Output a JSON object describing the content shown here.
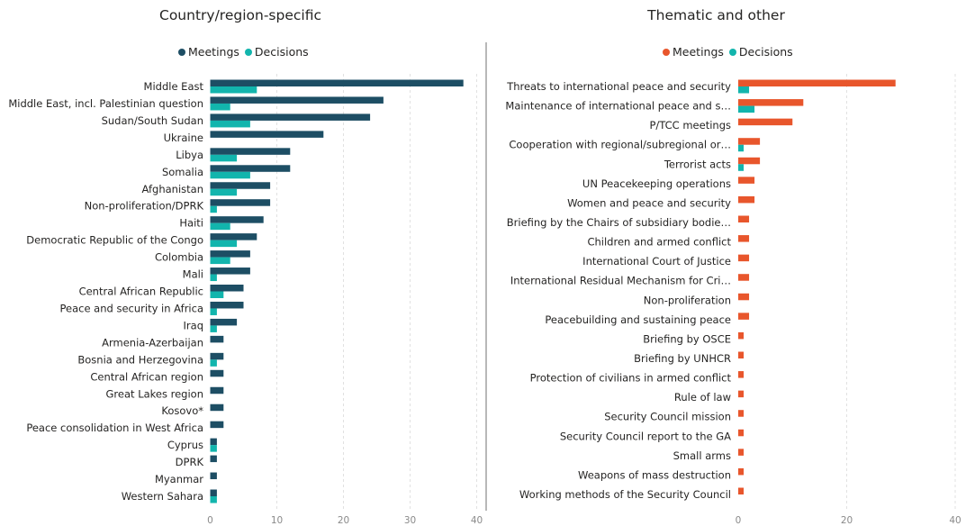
{
  "colors": {
    "left_meetings": "#1d4e64",
    "left_decisions": "#12b5ad",
    "right_meetings": "#e8562c",
    "right_decisions": "#12b5ad",
    "gridline": "#e1e1e1",
    "divider": "#b8b8b8"
  },
  "chart_data": [
    {
      "type": "bar",
      "orientation": "horizontal",
      "title": "Country/region-specific",
      "legend_position": "top",
      "grid": true,
      "xlim": [
        0,
        40
      ],
      "x_ticks": [
        0,
        10,
        20,
        30,
        40
      ],
      "categories": [
        "Middle East",
        "Middle East, incl. Palestinian question",
        "Sudan/South Sudan",
        "Ukraine",
        "Libya",
        "Somalia",
        "Afghanistan",
        "Non-proliferation/DPRK",
        "Haiti",
        "Democratic Republic of the Congo",
        "Colombia",
        "Mali",
        "Central African Republic",
        "Peace and security in Africa",
        "Iraq",
        "Armenia-Azerbaijan",
        "Bosnia and Herzegovina",
        "Central African region",
        "Great Lakes region",
        "Kosovo*",
        "Peace consolidation in West Africa",
        "Cyprus",
        "DPRK",
        "Myanmar",
        "Western Sahara"
      ],
      "series": [
        {
          "name": "Meetings",
          "values": [
            38,
            26,
            24,
            17,
            12,
            12,
            9,
            9,
            8,
            7,
            6,
            6,
            5,
            5,
            4,
            2,
            2,
            2,
            2,
            2,
            2,
            1,
            1,
            1,
            1
          ]
        },
        {
          "name": "Decisions",
          "values": [
            7,
            3,
            6,
            0,
            4,
            6,
            4,
            1,
            3,
            4,
            3,
            1,
            2,
            1,
            1,
            0,
            1,
            0,
            0,
            0,
            0,
            1,
            0,
            0,
            1
          ]
        }
      ]
    },
    {
      "type": "bar",
      "orientation": "horizontal",
      "title": "Thematic and other",
      "legend_position": "top",
      "grid": true,
      "xlim": [
        0,
        40
      ],
      "x_ticks": [
        0,
        20,
        40
      ],
      "categories": [
        "Threats to international peace and security",
        "Maintenance of international peace and s…",
        "P/TCC meetings",
        "Cooperation with regional/subregional or…",
        "Terrorist acts",
        "UN Peacekeeping operations",
        "Women and peace and security",
        "Briefing by the Chairs of subsidiary bodie…",
        "Children and armed conflict",
        "International Court of Justice",
        "International Residual Mechanism for Cri…",
        "Non-proliferation",
        "Peacebuilding and sustaining peace",
        "Briefing by OSCE",
        "Briefing by UNHCR",
        "Protection of civilians in armed conflict",
        "Rule of law",
        "Security Council mission",
        "Security Council report to the GA",
        "Small arms",
        "Weapons of mass destruction",
        "Working methods of the Security Council"
      ],
      "series": [
        {
          "name": "Meetings",
          "values": [
            29,
            12,
            10,
            4,
            4,
            3,
            3,
            2,
            2,
            2,
            2,
            2,
            2,
            1,
            1,
            1,
            1,
            1,
            1,
            1,
            1,
            1
          ]
        },
        {
          "name": "Decisions",
          "values": [
            2,
            3,
            0,
            1,
            1,
            0,
            0,
            0,
            0,
            0,
            0,
            0,
            0,
            0,
            0,
            0,
            0,
            0,
            0,
            0,
            0,
            0
          ]
        }
      ]
    }
  ]
}
